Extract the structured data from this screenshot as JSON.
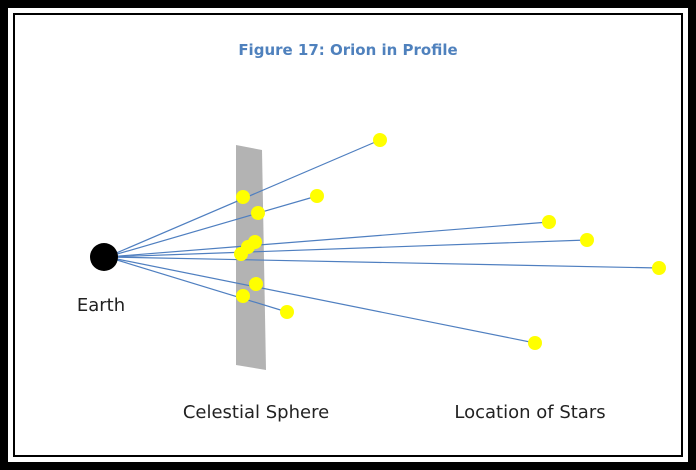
{
  "title": "Figure 17: Orion in Profile",
  "labels": {
    "earth": "Earth",
    "sphere": "Celestial Sphere",
    "stars": "Location of Stars"
  }
}
